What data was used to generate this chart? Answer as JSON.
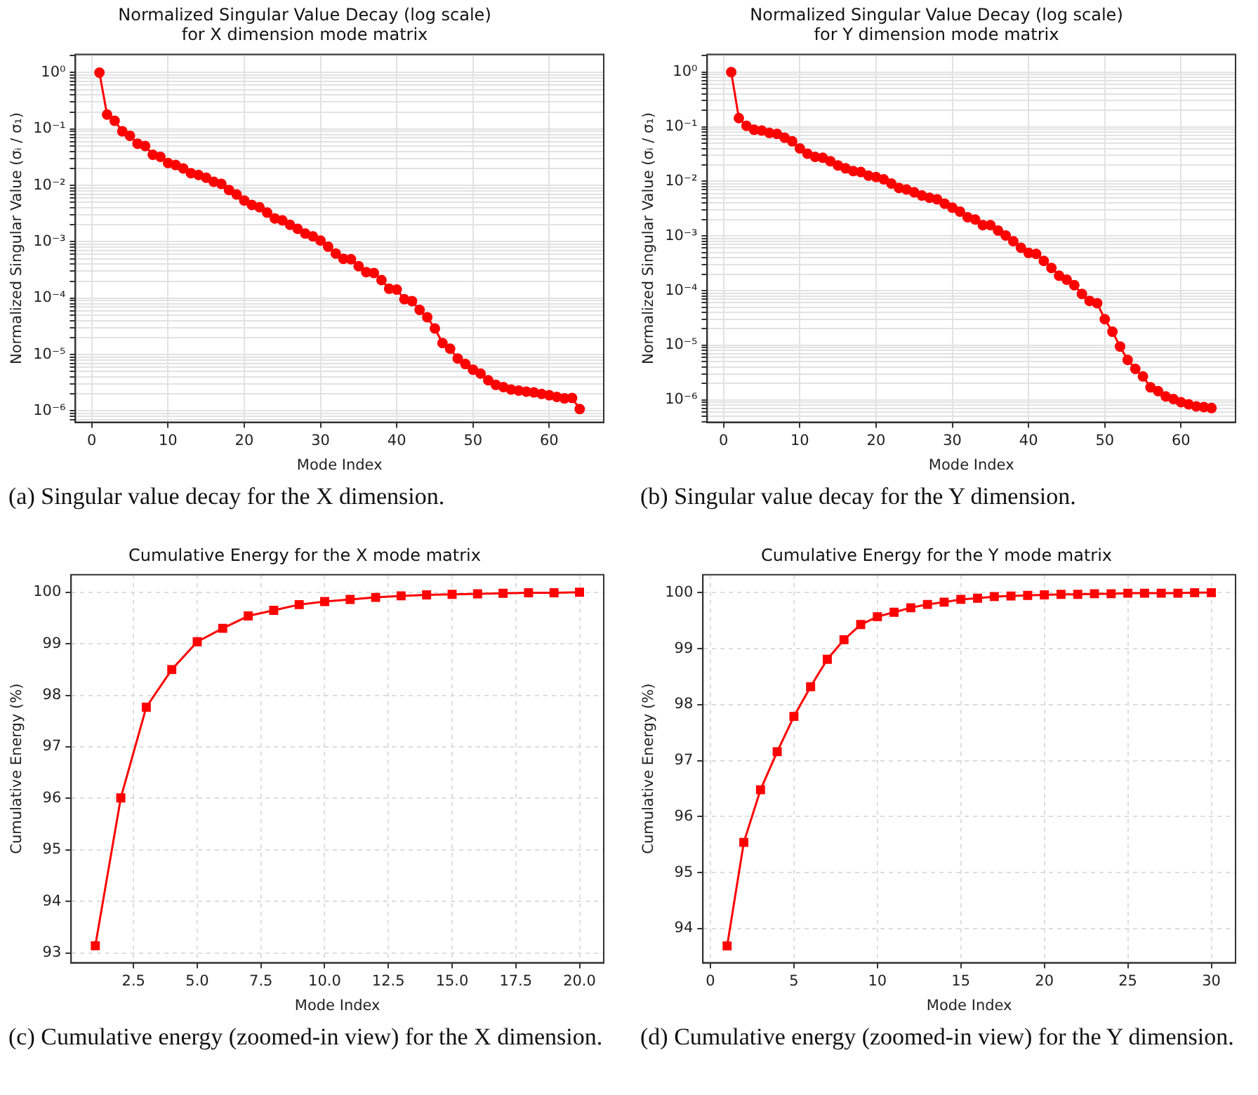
{
  "chart_data": [
    {
      "type": "line",
      "title": "Normalized Singular Value Decay (log scale)\nfor X dimension mode matrix",
      "xlabel": "Mode Index",
      "ylabel": "Normalized Singular Value (σᵢ / σ₁)",
      "log": true,
      "grid": true,
      "marker": "circle",
      "color": "#ff0000",
      "x": [
        1,
        2,
        3,
        4,
        5,
        6,
        7,
        8,
        9,
        10,
        11,
        12,
        13,
        14,
        15,
        16,
        17,
        18,
        19,
        20,
        21,
        22,
        23,
        24,
        25,
        26,
        27,
        28,
        29,
        30,
        31,
        32,
        33,
        34,
        35,
        36,
        37,
        38,
        39,
        40,
        41,
        42,
        43,
        44,
        45,
        46,
        47,
        48,
        49,
        50,
        51,
        52,
        53,
        54,
        55,
        56,
        57,
        58,
        59,
        60,
        61,
        62,
        63,
        64
      ],
      "values": [
        1,
        0.18,
        0.14,
        0.091,
        0.076,
        0.055,
        0.05,
        0.035,
        0.032,
        0.025,
        0.023,
        0.02,
        0.0165,
        0.0153,
        0.0137,
        0.0116,
        0.0106,
        0.0083,
        0.0069,
        0.0054,
        0.0045,
        0.0041,
        0.0033,
        0.0026,
        0.0024,
        0.002,
        0.0017,
        0.0014,
        0.00125,
        0.00105,
        0.00082,
        0.00062,
        0.0005,
        0.00049,
        0.00037,
        0.00029,
        0.00028,
        0.00021,
        0.000147,
        0.000142,
        9.6e-05,
        8.9e-05,
        6.2e-05,
        4.6e-05,
        2.9e-05,
        1.6e-05,
        1.27e-05,
        8.5e-06,
        6.8e-06,
        5.4e-06,
        4.6e-06,
        3.5e-06,
        2.9e-06,
        2.65e-06,
        2.4e-06,
        2.3e-06,
        2.2e-06,
        2.13e-06,
        2e-06,
        1.9e-06,
        1.77e-06,
        1.67e-06,
        1.7e-06,
        1.08e-06
      ],
      "xlim": [
        -2.15,
        67.15
      ],
      "xticks": [
        0,
        10,
        20,
        30,
        40,
        50,
        60
      ],
      "ylim": [
        6.3e-07,
        2.1
      ],
      "yticks": [
        {
          "value": 7e-07,
          "label": null
        },
        {
          "value": 8e-07,
          "label": null
        },
        {
          "value": 9e-07,
          "label": null
        },
        {
          "value": 1e-06,
          "label": "10⁻⁶"
        },
        {
          "value": 2e-06,
          "label": null
        },
        {
          "value": 3e-06,
          "label": null
        },
        {
          "value": 4e-06,
          "label": null
        },
        {
          "value": 5e-06,
          "label": null
        },
        {
          "value": 6e-06,
          "label": null
        },
        {
          "value": 7e-06,
          "label": null
        },
        {
          "value": 8e-06,
          "label": null
        },
        {
          "value": 9e-06,
          "label": null
        },
        {
          "value": 1e-05,
          "label": "10⁻⁵"
        },
        {
          "value": 2e-05,
          "label": null
        },
        {
          "value": 3e-05,
          "label": null
        },
        {
          "value": 4e-05,
          "label": null
        },
        {
          "value": 5e-05,
          "label": null
        },
        {
          "value": 6e-05,
          "label": null
        },
        {
          "value": 7e-05,
          "label": null
        },
        {
          "value": 8e-05,
          "label": null
        },
        {
          "value": 9e-05,
          "label": null
        },
        {
          "value": 0.0001,
          "label": "10⁻⁴"
        },
        {
          "value": 0.0002,
          "label": null
        },
        {
          "value": 0.0003,
          "label": null
        },
        {
          "value": 0.0004,
          "label": null
        },
        {
          "value": 0.0005,
          "label": null
        },
        {
          "value": 0.0006,
          "label": null
        },
        {
          "value": 0.0007,
          "label": null
        },
        {
          "value": 0.0008,
          "label": null
        },
        {
          "value": 0.0009,
          "label": null
        },
        {
          "value": 0.001,
          "label": "10⁻³"
        },
        {
          "value": 0.002,
          "label": null
        },
        {
          "value": 0.003,
          "label": null
        },
        {
          "value": 0.004,
          "label": null
        },
        {
          "value": 0.005,
          "label": null
        },
        {
          "value": 0.006,
          "label": null
        },
        {
          "value": 0.007,
          "label": null
        },
        {
          "value": 0.008,
          "label": null
        },
        {
          "value": 0.009,
          "label": null
        },
        {
          "value": 0.01,
          "label": "10⁻²"
        },
        {
          "value": 0.02,
          "label": null
        },
        {
          "value": 0.03,
          "label": null
        },
        {
          "value": 0.04,
          "label": null
        },
        {
          "value": 0.05,
          "label": null
        },
        {
          "value": 0.06,
          "label": null
        },
        {
          "value": 0.07,
          "label": null
        },
        {
          "value": 0.08,
          "label": null
        },
        {
          "value": 0.09,
          "label": null
        },
        {
          "value": 0.1,
          "label": "10⁻¹"
        },
        {
          "value": 0.2,
          "label": null
        },
        {
          "value": 0.3,
          "label": null
        },
        {
          "value": 0.4,
          "label": null
        },
        {
          "value": 0.5,
          "label": null
        },
        {
          "value": 0.6,
          "label": null
        },
        {
          "value": 0.7,
          "label": null
        },
        {
          "value": 0.8,
          "label": null
        },
        {
          "value": 0.9,
          "label": null
        },
        {
          "value": 1,
          "label": "10⁰"
        },
        {
          "value": 2,
          "label": null
        }
      ],
      "annotations": [
        "(a) Singular value decay for the X dimension."
      ]
    },
    {
      "type": "line",
      "title": "Normalized Singular Value Decay (log scale)\nfor Y dimension mode matrix",
      "xlabel": "Mode Index",
      "ylabel": "Normalized Singular Value (σᵢ / σ₁)",
      "log": true,
      "grid": true,
      "marker": "circle",
      "color": "#ff0000",
      "x": [
        1,
        2,
        3,
        4,
        5,
        6,
        7,
        8,
        9,
        10,
        11,
        12,
        13,
        14,
        15,
        16,
        17,
        18,
        19,
        20,
        21,
        22,
        23,
        24,
        25,
        26,
        27,
        28,
        29,
        30,
        31,
        32,
        33,
        34,
        35,
        36,
        37,
        38,
        39,
        40,
        41,
        42,
        43,
        44,
        45,
        46,
        47,
        48,
        49,
        50,
        51,
        52,
        53,
        54,
        55,
        56,
        57,
        58,
        59,
        60,
        61,
        62,
        63,
        64
      ],
      "values": [
        1,
        0.144,
        0.104,
        0.088,
        0.085,
        0.077,
        0.074,
        0.063,
        0.054,
        0.04,
        0.032,
        0.028,
        0.027,
        0.0234,
        0.0196,
        0.0173,
        0.0154,
        0.0148,
        0.0127,
        0.012,
        0.0109,
        0.0091,
        0.0076,
        0.0071,
        0.0063,
        0.0055,
        0.005,
        0.0047,
        0.0039,
        0.0033,
        0.0028,
        0.0022,
        0.002,
        0.00158,
        0.00158,
        0.00126,
        0.00102,
        0.0008,
        0.00061,
        0.00049,
        0.00047,
        0.00035,
        0.00026,
        0.000188,
        0.000159,
        0.000126,
        8.7e-05,
        6.5e-05,
        5.9e-05,
        3e-05,
        1.77e-05,
        9.5e-06,
        5.4e-06,
        3.7e-06,
        2.7e-06,
        1.7e-06,
        1.45e-06,
        1.16e-06,
        1.04e-06,
        9.1e-07,
        8.3e-07,
        7.6e-07,
        7.4e-07,
        7.1e-07
      ],
      "xlim": [
        -2.15,
        67.15
      ],
      "xticks": [
        0,
        10,
        20,
        30,
        40,
        50,
        60
      ],
      "ylim": [
        3.9e-07,
        2.1
      ],
      "yticks": [
        {
          "value": 4e-07,
          "label": null
        },
        {
          "value": 5e-07,
          "label": null
        },
        {
          "value": 6e-07,
          "label": null
        },
        {
          "value": 7e-07,
          "label": null
        },
        {
          "value": 8e-07,
          "label": null
        },
        {
          "value": 9e-07,
          "label": null
        },
        {
          "value": 1e-06,
          "label": "10⁻⁶"
        },
        {
          "value": 2e-06,
          "label": null
        },
        {
          "value": 3e-06,
          "label": null
        },
        {
          "value": 4e-06,
          "label": null
        },
        {
          "value": 5e-06,
          "label": null
        },
        {
          "value": 6e-06,
          "label": null
        },
        {
          "value": 7e-06,
          "label": null
        },
        {
          "value": 8e-06,
          "label": null
        },
        {
          "value": 9e-06,
          "label": null
        },
        {
          "value": 1e-05,
          "label": "10⁻⁵"
        },
        {
          "value": 2e-05,
          "label": null
        },
        {
          "value": 3e-05,
          "label": null
        },
        {
          "value": 4e-05,
          "label": null
        },
        {
          "value": 5e-05,
          "label": null
        },
        {
          "value": 6e-05,
          "label": null
        },
        {
          "value": 7e-05,
          "label": null
        },
        {
          "value": 8e-05,
          "label": null
        },
        {
          "value": 9e-05,
          "label": null
        },
        {
          "value": 0.0001,
          "label": "10⁻⁴"
        },
        {
          "value": 0.0002,
          "label": null
        },
        {
          "value": 0.0003,
          "label": null
        },
        {
          "value": 0.0004,
          "label": null
        },
        {
          "value": 0.0005,
          "label": null
        },
        {
          "value": 0.0006,
          "label": null
        },
        {
          "value": 0.0007,
          "label": null
        },
        {
          "value": 0.0008,
          "label": null
        },
        {
          "value": 0.0009,
          "label": null
        },
        {
          "value": 0.001,
          "label": "10⁻³"
        },
        {
          "value": 0.002,
          "label": null
        },
        {
          "value": 0.003,
          "label": null
        },
        {
          "value": 0.004,
          "label": null
        },
        {
          "value": 0.005,
          "label": null
        },
        {
          "value": 0.006,
          "label": null
        },
        {
          "value": 0.007,
          "label": null
        },
        {
          "value": 0.008,
          "label": null
        },
        {
          "value": 0.009,
          "label": null
        },
        {
          "value": 0.01,
          "label": "10⁻²"
        },
        {
          "value": 0.02,
          "label": null
        },
        {
          "value": 0.03,
          "label": null
        },
        {
          "value": 0.04,
          "label": null
        },
        {
          "value": 0.05,
          "label": null
        },
        {
          "value": 0.06,
          "label": null
        },
        {
          "value": 0.07,
          "label": null
        },
        {
          "value": 0.08,
          "label": null
        },
        {
          "value": 0.09,
          "label": null
        },
        {
          "value": 0.1,
          "label": "10⁻¹"
        },
        {
          "value": 0.2,
          "label": null
        },
        {
          "value": 0.3,
          "label": null
        },
        {
          "value": 0.4,
          "label": null
        },
        {
          "value": 0.5,
          "label": null
        },
        {
          "value": 0.6,
          "label": null
        },
        {
          "value": 0.7,
          "label": null
        },
        {
          "value": 0.8,
          "label": null
        },
        {
          "value": 0.9,
          "label": null
        },
        {
          "value": 1,
          "label": "10⁰"
        },
        {
          "value": 2,
          "label": null
        }
      ],
      "annotations": [
        "(b) Singular value decay for the Y dimension."
      ]
    },
    {
      "type": "line",
      "title": "Cumulative Energy for the X mode matrix",
      "xlabel": "Mode Index",
      "ylabel": "Cumulative Energy (%)",
      "grid": true,
      "marker": "square",
      "color": "#ff0000",
      "x": [
        1,
        2,
        3,
        4,
        5,
        6,
        7,
        8,
        9,
        10,
        11,
        12,
        13,
        14,
        15,
        16,
        17,
        18,
        19,
        20
      ],
      "values": [
        93.14,
        96.01,
        97.77,
        98.5,
        99.04,
        99.3,
        99.54,
        99.65,
        99.76,
        99.82,
        99.86,
        99.9,
        99.93,
        99.95,
        99.96,
        99.97,
        99.98,
        99.99,
        99.99,
        100
      ],
      "xlim": [
        0.05,
        20.95
      ],
      "xticks": [
        {
          "value": 2.5,
          "label": "2.5"
        },
        {
          "value": 5,
          "label": "5.0"
        },
        {
          "value": 7.5,
          "label": "7.5"
        },
        {
          "value": 10,
          "label": "10.0"
        },
        {
          "value": 12.5,
          "label": "12.5"
        },
        {
          "value": 15,
          "label": "15.0"
        },
        {
          "value": 17.5,
          "label": "17.5"
        },
        {
          "value": 20,
          "label": "20.0"
        }
      ],
      "ylim": [
        92.81,
        100.34
      ],
      "yticks": [
        93,
        94,
        95,
        96,
        97,
        98,
        99,
        100
      ],
      "annotations": [
        "(c) Cumulative energy (zoomed-in view) for the X dimension."
      ]
    },
    {
      "type": "line",
      "title": "Cumulative Energy for the Y mode matrix",
      "xlabel": "Mode Index",
      "ylabel": "Cumulative Energy (%)",
      "grid": true,
      "marker": "square",
      "color": "#ff0000",
      "x": [
        1,
        2,
        3,
        4,
        5,
        6,
        7,
        8,
        9,
        10,
        11,
        12,
        13,
        14,
        15,
        16,
        17,
        18,
        19,
        20,
        21,
        22,
        23,
        24,
        25,
        26,
        27,
        28,
        29,
        30
      ],
      "values": [
        93.69,
        95.54,
        96.48,
        97.16,
        97.79,
        98.32,
        98.81,
        99.16,
        99.43,
        99.57,
        99.65,
        99.73,
        99.79,
        99.83,
        99.88,
        99.9,
        99.93,
        99.94,
        99.95,
        99.96,
        99.97,
        99.97,
        99.98,
        99.98,
        99.99,
        99.99,
        99.99,
        99.99,
        100,
        100
      ],
      "xlim": [
        -0.45,
        31.45
      ],
      "xticks": [
        0,
        5,
        10,
        15,
        20,
        25,
        30
      ],
      "ylim": [
        93.39,
        100.32
      ],
      "yticks": [
        94,
        95,
        96,
        97,
        98,
        99,
        100
      ],
      "annotations": [
        "(d) Cumulative energy (zoomed-in view) for the Y dimension."
      ]
    }
  ]
}
